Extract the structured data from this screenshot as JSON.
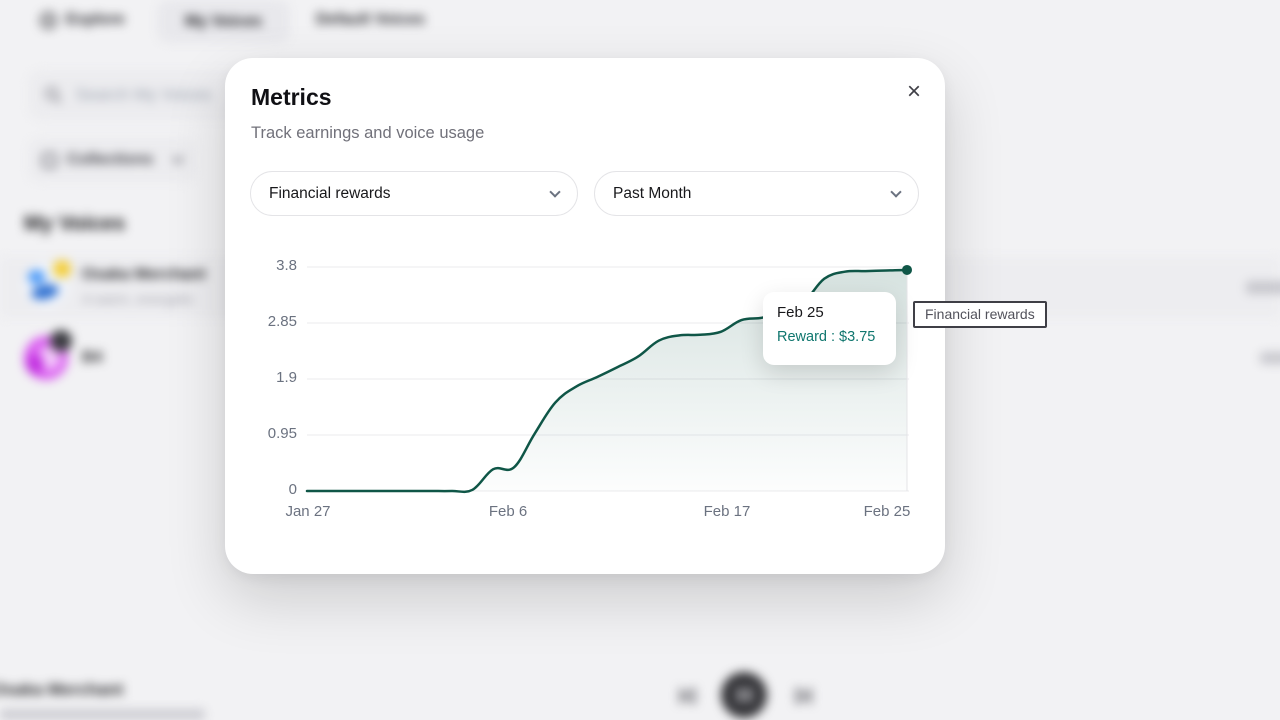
{
  "background": {
    "tabs": [
      {
        "label": "Explore"
      },
      {
        "label": "My Voices",
        "active": true
      },
      {
        "label": "Default Voices"
      }
    ],
    "search": {
      "placeholder": "Search My Voices"
    },
    "collections_button": {
      "label": "Collections"
    },
    "section_title": "My Voices",
    "voices": [
      {
        "name": "Osaka Merchant",
        "description": "A warm, energetic"
      },
      {
        "name": "B4"
      }
    ],
    "player": {
      "track_title": "Osaka Merchant"
    }
  },
  "modal": {
    "title": "Metrics",
    "subtitle": "Track earnings and voice usage",
    "close_icon": "×",
    "metric_select": {
      "value": "Financial rewards"
    },
    "period_select": {
      "value": "Past Month"
    }
  },
  "chart_data": {
    "type": "area",
    "series_label": "Financial rewards",
    "title": "",
    "xlabel": "",
    "ylabel": "",
    "x_ticks": [
      "Jan 27",
      "Feb 6",
      "Feb 17",
      "Feb 25"
    ],
    "y_ticks": [
      "3.8",
      "2.85",
      "1.9",
      "0.95",
      "0"
    ],
    "y_tick_values": [
      3.8,
      2.85,
      1.9,
      0.95,
      0
    ],
    "ylim": [
      0,
      3.8
    ],
    "grid": "horizontal",
    "line_color": "#0f5647",
    "points": [
      {
        "date": "Jan 27",
        "value": 0
      },
      {
        "date": "Jan 28",
        "value": 0
      },
      {
        "date": "Jan 29",
        "value": 0
      },
      {
        "date": "Jan 30",
        "value": 0
      },
      {
        "date": "Jan 31",
        "value": 0
      },
      {
        "date": "Feb 1",
        "value": 0
      },
      {
        "date": "Feb 2",
        "value": 0
      },
      {
        "date": "Feb 3",
        "value": 0
      },
      {
        "date": "Feb 4",
        "value": 0.02
      },
      {
        "date": "Feb 5",
        "value": 0.37
      },
      {
        "date": "Feb 6",
        "value": 0.4
      },
      {
        "date": "Feb 7",
        "value": 0.97
      },
      {
        "date": "Feb 8",
        "value": 1.5
      },
      {
        "date": "Feb 9",
        "value": 1.77
      },
      {
        "date": "Feb 10",
        "value": 1.93
      },
      {
        "date": "Feb 11",
        "value": 2.1
      },
      {
        "date": "Feb 12",
        "value": 2.28
      },
      {
        "date": "Feb 13",
        "value": 2.55
      },
      {
        "date": "Feb 14",
        "value": 2.64
      },
      {
        "date": "Feb 15",
        "value": 2.65
      },
      {
        "date": "Feb 16",
        "value": 2.7
      },
      {
        "date": "Feb 17",
        "value": 2.9
      },
      {
        "date": "Feb 18",
        "value": 2.94
      },
      {
        "date": "Feb 19",
        "value": 3.05
      },
      {
        "date": "Feb 20",
        "value": 3.2
      },
      {
        "date": "Feb 21",
        "value": 3.6
      },
      {
        "date": "Feb 22",
        "value": 3.72
      },
      {
        "date": "Feb 23",
        "value": 3.73
      },
      {
        "date": "Feb 24",
        "value": 3.74
      },
      {
        "date": "Feb 25",
        "value": 3.75
      }
    ],
    "tooltip": {
      "date": "Feb 25",
      "text": "Reward : $3.75"
    }
  }
}
